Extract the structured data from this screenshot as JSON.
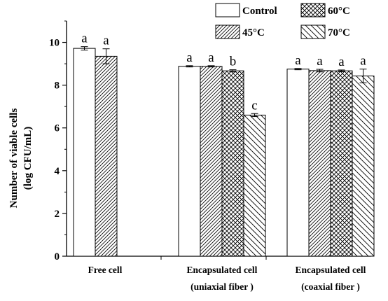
{
  "chart_data": {
    "type": "bar",
    "ylabel_line1": "Number of viable cells",
    "ylabel_line2": "(log CFU/mL)",
    "ylim": [
      0,
      11
    ],
    "yticks": [
      "0",
      "2",
      "4",
      "6",
      "8",
      "10"
    ],
    "grid": false,
    "legend_placement": "top-right",
    "groups": [
      {
        "label_line1": "Free cell",
        "label_line2": "",
        "bars": [
          {
            "series": "Control",
            "value": 9.72,
            "error": 0.08,
            "sig": "a"
          },
          {
            "series": "45°C",
            "value": 9.35,
            "error": 0.35,
            "sig": "a"
          }
        ]
      },
      {
        "label_line1": "Encapsulated cell",
        "label_line2": "(uniaxial fiber )",
        "bars": [
          {
            "series": "Control",
            "value": 8.88,
            "error": 0.03,
            "sig": "a"
          },
          {
            "series": "45°C",
            "value": 8.88,
            "error": 0.03,
            "sig": "a"
          },
          {
            "series": "60°C",
            "value": 8.67,
            "error": 0.05,
            "sig": "b"
          },
          {
            "series": "70°C",
            "value": 6.6,
            "error": 0.07,
            "sig": "c"
          }
        ]
      },
      {
        "label_line1": "Encapsulated cell",
        "label_line2": "(coaxial fiber )",
        "bars": [
          {
            "series": "Control",
            "value": 8.75,
            "error": 0.03,
            "sig": "a"
          },
          {
            "series": "45°C",
            "value": 8.68,
            "error": 0.06,
            "sig": "a"
          },
          {
            "series": "60°C",
            "value": 8.67,
            "error": 0.04,
            "sig": "a"
          },
          {
            "series": "70°C",
            "value": 8.43,
            "error": 0.32,
            "sig": "a"
          }
        ]
      }
    ],
    "series": [
      {
        "name": "Control",
        "pattern": "none"
      },
      {
        "name": "45°C",
        "pattern": "diagonal-up"
      },
      {
        "name": "60°C",
        "pattern": "crosshatch"
      },
      {
        "name": "70°C",
        "pattern": "diagonal-down-sparse"
      }
    ]
  }
}
